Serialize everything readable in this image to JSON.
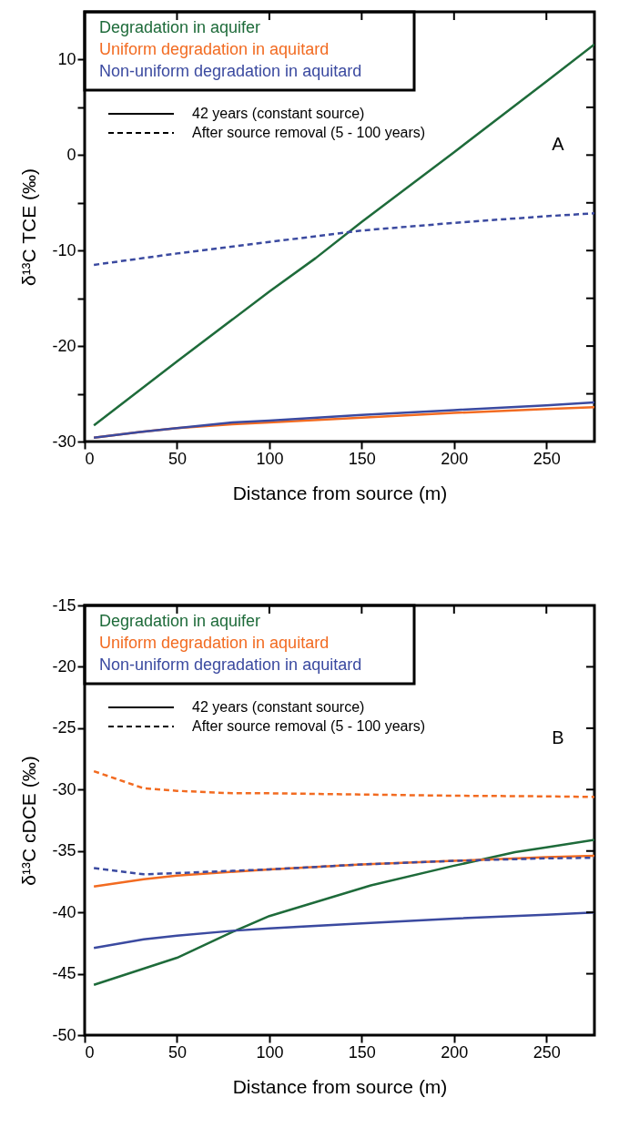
{
  "chart_data": [
    {
      "type": "line",
      "xlabel": "Distance from source (m)",
      "ylabel": "δ¹³C TCE (‰)",
      "xlim": [
        0,
        276
      ],
      "ylim": [
        -30,
        15
      ],
      "xticks": [
        0,
        50,
        100,
        150,
        200,
        250
      ],
      "yticks": [
        -30,
        {
          "value": -25,
          "label": null
        },
        -20,
        {
          "value": -15,
          "label": null
        },
        -10,
        {
          "value": -5,
          "label": null
        },
        0,
        {
          "value": 5,
          "label": null
        },
        10
      ],
      "grid": false,
      "legend": "top left",
      "marker": "none",
      "annotations": [
        "42 years (constant source)",
        "After source removal (5 - 100 years)",
        "A"
      ],
      "series": [
        {
          "name": "Degradation in aquifer",
          "color": "#1e6b3a",
          "line_style": "solid",
          "x": [
            5,
            50,
            100,
            125,
            150,
            200,
            250,
            276
          ],
          "values": [
            -28.3,
            -21.6,
            -14.3,
            -10.8,
            -7.0,
            0.3,
            7.7,
            11.6
          ]
        },
        {
          "name": "Uniform degradation in aquitard",
          "color": "#f26b21",
          "line_style": "solid",
          "x": [
            5,
            30,
            50,
            80,
            100,
            150,
            200,
            250,
            276
          ],
          "values": [
            -29.6,
            -29.0,
            -28.6,
            -28.2,
            -28.0,
            -27.5,
            -27.0,
            -26.6,
            -26.4
          ]
        },
        {
          "name": "Non-uniform degradation in aquitard",
          "color": "#3b4aa0",
          "line_style": "solid",
          "x": [
            5,
            30,
            50,
            80,
            100,
            150,
            200,
            250,
            276
          ],
          "values": [
            -29.6,
            -29.0,
            -28.6,
            -28.0,
            -27.8,
            -27.2,
            -26.7,
            -26.2,
            -25.9
          ]
        },
        {
          "color": "#3b4aa0",
          "line_style": "dashed",
          "x": [
            5,
            50,
            100,
            150,
            200,
            250,
            276
          ],
          "values": [
            -11.5,
            -10.3,
            -9.1,
            -7.9,
            -7.1,
            -6.4,
            -6.1
          ]
        }
      ]
    },
    {
      "type": "line",
      "xlabel": "Distance from source (m)",
      "ylabel": "δ¹³C cDCE (‰)",
      "xlim": [
        0,
        276
      ],
      "ylim": [
        -50,
        -15
      ],
      "xticks": [
        0,
        50,
        100,
        150,
        200,
        250
      ],
      "yticks": [
        -50,
        -45,
        -40,
        -35,
        -30,
        -25,
        -20,
        -15
      ],
      "grid": false,
      "legend": "top left",
      "marker": "none",
      "annotations": [
        "42 years (constant source)",
        "After source removal (5 - 100 years)",
        "B"
      ],
      "series": [
        {
          "name": "Degradation in aquifer",
          "color": "#1e6b3a",
          "line_style": "solid",
          "x": [
            5,
            50,
            80,
            100,
            155,
            200,
            233,
            250,
            276
          ],
          "values": [
            -45.9,
            -43.7,
            -41.6,
            -40.3,
            -37.8,
            -36.2,
            -35.1,
            -34.7,
            -34.1
          ]
        },
        {
          "name": "Uniform degradation in aquitard",
          "color": "#f26b21",
          "line_style": "solid",
          "x": [
            5,
            32,
            50,
            100,
            150,
            200,
            250,
            276
          ],
          "values": [
            -37.9,
            -37.3,
            -37.0,
            -36.5,
            -36.1,
            -35.8,
            -35.5,
            -35.4
          ]
        },
        {
          "name": "Non-uniform degradation in aquitard",
          "color": "#3b4aa0",
          "line_style": "solid",
          "x": [
            5,
            32,
            50,
            80,
            100,
            150,
            200,
            250,
            276
          ],
          "values": [
            -42.9,
            -42.2,
            -41.9,
            -41.5,
            -41.3,
            -40.9,
            -40.5,
            -40.2,
            -40.0
          ]
        },
        {
          "color": "#f26b21",
          "line_style": "dashed",
          "x": [
            5,
            32,
            50,
            80,
            100,
            150,
            200,
            250,
            276
          ],
          "values": [
            -28.5,
            -29.9,
            -30.1,
            -30.3,
            -30.3,
            -30.4,
            -30.5,
            -30.55,
            -30.6
          ]
        },
        {
          "color": "#3b4aa0",
          "line_style": "dashed",
          "x": [
            5,
            32,
            50,
            100,
            150,
            200,
            250,
            276
          ],
          "values": [
            -36.4,
            -36.9,
            -36.8,
            -36.5,
            -36.1,
            -35.8,
            -35.6,
            -35.55
          ]
        }
      ]
    }
  ]
}
